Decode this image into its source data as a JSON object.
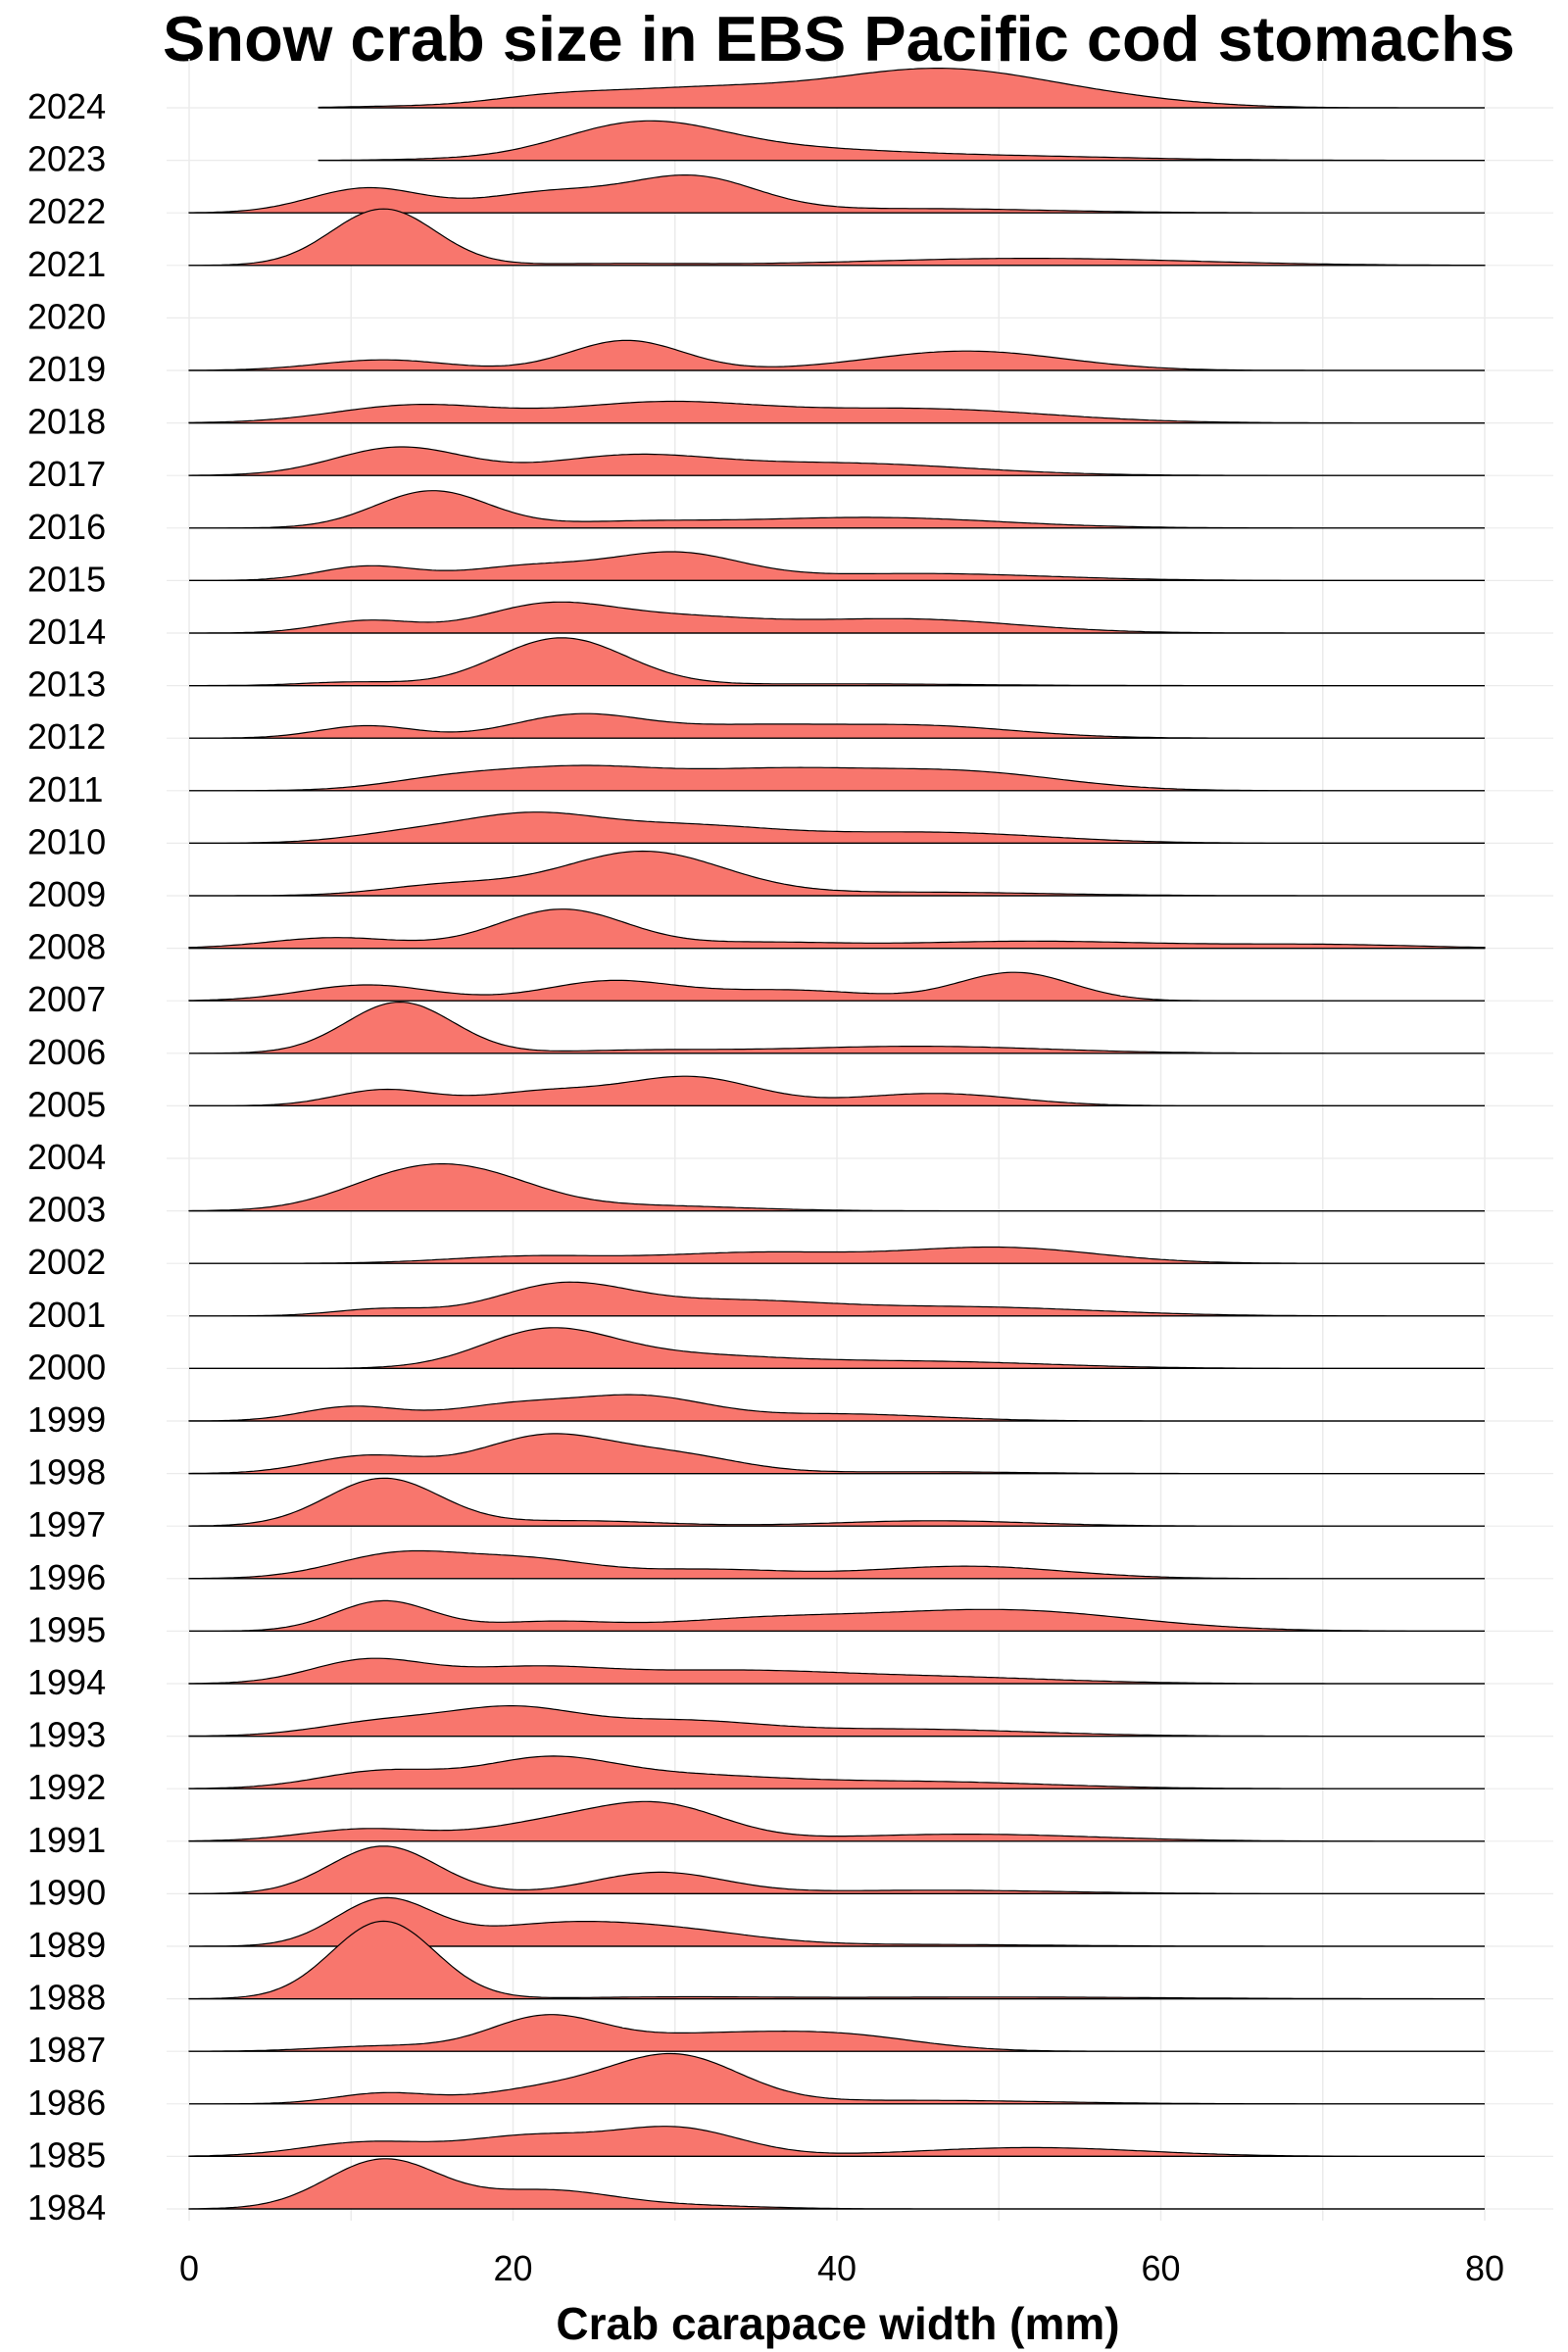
{
  "chart_data": {
    "type": "ridgeline",
    "title": "Snow crab size in EBS Pacific cod stomachs",
    "xlabel": "Crab carapace width (mm)",
    "ylabel": "",
    "xlim": [
      0,
      80
    ],
    "x_ticks": [
      "0",
      "20",
      "40",
      "60",
      "80"
    ],
    "fill_color": "#F8766D",
    "line_color": "#000000",
    "grid": true,
    "legend": "none",
    "years": [
      "2024",
      "2023",
      "2022",
      "2021",
      "2020",
      "2019",
      "2018",
      "2017",
      "2016",
      "2015",
      "2014",
      "2013",
      "2012",
      "2011",
      "2010",
      "2009",
      "2008",
      "2007",
      "2006",
      "2005",
      "2004",
      "2003",
      "2002",
      "2001",
      "2000",
      "1999",
      "1998",
      "1997",
      "1996",
      "1995",
      "1994",
      "1993",
      "1992",
      "1991",
      "1990",
      "1989",
      "1988",
      "1987",
      "1986",
      "1985",
      "1984"
    ],
    "series": [
      {
        "year": "2024",
        "range": [
          8,
          80
        ],
        "peaks": [
          [
            12,
            0.03,
            3
          ],
          [
            22,
            0.2,
            4
          ],
          [
            32,
            0.55,
            7
          ],
          [
            46,
            0.95,
            6
          ],
          [
            55,
            0.3,
            6
          ]
        ]
      },
      {
        "year": "2023",
        "range": [
          8,
          80
        ],
        "peaks": [
          [
            15,
            0.02,
            3
          ],
          [
            28,
            1.05,
            5
          ],
          [
            38,
            0.25,
            6
          ],
          [
            50,
            0.12,
            8
          ]
        ]
      },
      {
        "year": "2022",
        "range": [
          0,
          80
        ],
        "peaks": [
          [
            11,
            0.7,
            3.5
          ],
          [
            22,
            0.55,
            4
          ],
          [
            31,
            1.0,
            4
          ],
          [
            45,
            0.12,
            8
          ]
        ]
      },
      {
        "year": "2021",
        "range": [
          0,
          80
        ],
        "peaks": [
          [
            12,
            1.6,
            3.2
          ],
          [
            26,
            0.05,
            5
          ],
          [
            52,
            0.2,
            10
          ]
        ]
      },
      {
        "year": "2020",
        "range": [
          0,
          0
        ],
        "peaks": []
      },
      {
        "year": "2019",
        "range": [
          0,
          80
        ],
        "peaks": [
          [
            12,
            0.3,
            4
          ],
          [
            27,
            0.85,
            3.5
          ],
          [
            48,
            0.55,
            6
          ]
        ]
      },
      {
        "year": "2018",
        "range": [
          0,
          80
        ],
        "peaks": [
          [
            14,
            0.5,
            5
          ],
          [
            29,
            0.55,
            6
          ],
          [
            45,
            0.4,
            8
          ]
        ]
      },
      {
        "year": "2017",
        "range": [
          0,
          80
        ],
        "peaks": [
          [
            13,
            0.8,
            4
          ],
          [
            27,
            0.5,
            5
          ],
          [
            40,
            0.35,
            8
          ]
        ]
      },
      {
        "year": "2016",
        "range": [
          0,
          80
        ],
        "peaks": [
          [
            15,
            1.05,
            3.5
          ],
          [
            27,
            0.15,
            5
          ],
          [
            42,
            0.3,
            8
          ]
        ]
      },
      {
        "year": "2015",
        "range": [
          0,
          80
        ],
        "peaks": [
          [
            11,
            0.4,
            3
          ],
          [
            21,
            0.4,
            4
          ],
          [
            30,
            0.75,
            4
          ],
          [
            45,
            0.2,
            8
          ]
        ]
      },
      {
        "year": "2014",
        "range": [
          0,
          80
        ],
        "peaks": [
          [
            11,
            0.35,
            3
          ],
          [
            22,
            0.75,
            4
          ],
          [
            30,
            0.4,
            5
          ],
          [
            44,
            0.4,
            7
          ]
        ]
      },
      {
        "year": "2013",
        "range": [
          0,
          80
        ],
        "peaks": [
          [
            10,
            0.1,
            3
          ],
          [
            23,
            1.35,
            4
          ],
          [
            40,
            0.05,
            8
          ]
        ]
      },
      {
        "year": "2012",
        "range": [
          0,
          80
        ],
        "peaks": [
          [
            11,
            0.35,
            3
          ],
          [
            24,
            0.65,
            4
          ],
          [
            34,
            0.3,
            5
          ],
          [
            45,
            0.35,
            6
          ]
        ]
      },
      {
        "year": "2011",
        "range": [
          0,
          80
        ],
        "peaks": [
          [
            16,
            0.3,
            4
          ],
          [
            24,
            0.6,
            5
          ],
          [
            36,
            0.55,
            6
          ],
          [
            48,
            0.5,
            6
          ]
        ]
      },
      {
        "year": "2010",
        "range": [
          0,
          80
        ],
        "peaks": [
          [
            14,
            0.3,
            4
          ],
          [
            21,
            0.65,
            4
          ],
          [
            30,
            0.5,
            6
          ],
          [
            46,
            0.3,
            7
          ]
        ]
      },
      {
        "year": "2009",
        "range": [
          0,
          80
        ],
        "peaks": [
          [
            16,
            0.3,
            4
          ],
          [
            28,
            1.25,
            5
          ],
          [
            45,
            0.1,
            8
          ]
        ]
      },
      {
        "year": "2008",
        "range": [
          0,
          80
        ],
        "peaks": [
          [
            9,
            0.3,
            4
          ],
          [
            23,
            1.1,
            4
          ],
          [
            35,
            0.15,
            5
          ],
          [
            52,
            0.2,
            8
          ],
          [
            70,
            0.1,
            6
          ]
        ]
      },
      {
        "year": "2007",
        "range": [
          0,
          80
        ],
        "peaks": [
          [
            11,
            0.45,
            4
          ],
          [
            26,
            0.55,
            4
          ],
          [
            37,
            0.3,
            5
          ],
          [
            51,
            0.8,
            3.5
          ]
        ]
      },
      {
        "year": "2006",
        "range": [
          0,
          80
        ],
        "peaks": [
          [
            13,
            1.45,
            3.3
          ],
          [
            28,
            0.08,
            5
          ],
          [
            45,
            0.2,
            8
          ]
        ]
      },
      {
        "year": "2005",
        "range": [
          0,
          80
        ],
        "peaks": [
          [
            12,
            0.45,
            3
          ],
          [
            22,
            0.4,
            4
          ],
          [
            31,
            0.8,
            4
          ],
          [
            46,
            0.35,
            5
          ]
        ]
      },
      {
        "year": "2004",
        "range": [
          0,
          0
        ],
        "peaks": []
      },
      {
        "year": "2003",
        "range": [
          0,
          80
        ],
        "peaks": [
          [
            13,
            0.8,
            4
          ],
          [
            18,
            0.8,
            4
          ],
          [
            28,
            0.15,
            6
          ]
        ]
      },
      {
        "year": "2002",
        "range": [
          0,
          80
        ],
        "peaks": [
          [
            21,
            0.2,
            5
          ],
          [
            35,
            0.3,
            6
          ],
          [
            50,
            0.45,
            6
          ]
        ]
      },
      {
        "year": "2001",
        "range": [
          0,
          80
        ],
        "peaks": [
          [
            12,
            0.2,
            3
          ],
          [
            23,
            0.85,
            4
          ],
          [
            33,
            0.4,
            6
          ],
          [
            48,
            0.25,
            8
          ]
        ]
      },
      {
        "year": "2000",
        "range": [
          0,
          80
        ],
        "peaks": [
          [
            22,
            1.0,
            4
          ],
          [
            30,
            0.35,
            6
          ],
          [
            45,
            0.2,
            8
          ]
        ]
      },
      {
        "year": "1999",
        "range": [
          0,
          80
        ],
        "peaks": [
          [
            10,
            0.4,
            3
          ],
          [
            20,
            0.45,
            4
          ],
          [
            28,
            0.65,
            4
          ],
          [
            40,
            0.2,
            6
          ]
        ]
      },
      {
        "year": "1998",
        "range": [
          0,
          80
        ],
        "peaks": [
          [
            11,
            0.5,
            3.5
          ],
          [
            22,
            1.05,
            4
          ],
          [
            30,
            0.5,
            4
          ],
          [
            45,
            0.05,
            6
          ]
        ]
      },
      {
        "year": "1997",
        "range": [
          0,
          80
        ],
        "peaks": [
          [
            12,
            1.35,
            3.5
          ],
          [
            24,
            0.15,
            5
          ],
          [
            46,
            0.15,
            6
          ]
        ]
      },
      {
        "year": "1996",
        "range": [
          0,
          80
        ],
        "peaks": [
          [
            13,
            0.7,
            4
          ],
          [
            21,
            0.5,
            4
          ],
          [
            32,
            0.25,
            5
          ],
          [
            48,
            0.35,
            6
          ]
        ]
      },
      {
        "year": "1995",
        "range": [
          0,
          80
        ],
        "peaks": [
          [
            12,
            0.85,
            3
          ],
          [
            22,
            0.25,
            4
          ],
          [
            35,
            0.3,
            6
          ],
          [
            50,
            0.6,
            8
          ]
        ]
      },
      {
        "year": "1994",
        "range": [
          0,
          80
        ],
        "peaks": [
          [
            11,
            0.65,
            3.5
          ],
          [
            21,
            0.45,
            5
          ],
          [
            33,
            0.3,
            6
          ],
          [
            45,
            0.2,
            8
          ]
        ]
      },
      {
        "year": "1993",
        "range": [
          0,
          80
        ],
        "peaks": [
          [
            12,
            0.4,
            4
          ],
          [
            20,
            0.75,
            4
          ],
          [
            30,
            0.4,
            5
          ],
          [
            44,
            0.2,
            8
          ]
        ]
      },
      {
        "year": "1992",
        "range": [
          0,
          80
        ],
        "peaks": [
          [
            12,
            0.5,
            4
          ],
          [
            22,
            0.75,
            4
          ],
          [
            30,
            0.35,
            6
          ],
          [
            45,
            0.2,
            8
          ]
        ]
      },
      {
        "year": "1991",
        "range": [
          0,
          80
        ],
        "peaks": [
          [
            11,
            0.35,
            4
          ],
          [
            22,
            0.45,
            4
          ],
          [
            29,
            1.0,
            4
          ],
          [
            48,
            0.2,
            8
          ]
        ]
      },
      {
        "year": "1990",
        "range": [
          0,
          80
        ],
        "peaks": [
          [
            12,
            1.35,
            3.3
          ],
          [
            29,
            0.6,
            4
          ],
          [
            46,
            0.1,
            8
          ]
        ]
      },
      {
        "year": "1989",
        "range": [
          0,
          80
        ],
        "peaks": [
          [
            12,
            1.3,
            3
          ],
          [
            22,
            0.55,
            5
          ],
          [
            30,
            0.4,
            5
          ],
          [
            45,
            0.05,
            8
          ]
        ]
      },
      {
        "year": "1988",
        "range": [
          0,
          80
        ],
        "peaks": [
          [
            12,
            2.2,
            3.2
          ],
          [
            30,
            0.05,
            6
          ],
          [
            50,
            0.05,
            10
          ]
        ]
      },
      {
        "year": "1987",
        "range": [
          0,
          80
        ],
        "peaks": [
          [
            12,
            0.15,
            4
          ],
          [
            22,
            0.95,
            3.5
          ],
          [
            31,
            0.4,
            5
          ],
          [
            40,
            0.45,
            5
          ]
        ]
      },
      {
        "year": "1986",
        "range": [
          0,
          80
        ],
        "peaks": [
          [
            12,
            0.3,
            3
          ],
          [
            22,
            0.4,
            4
          ],
          [
            30,
            1.35,
            4
          ],
          [
            45,
            0.1,
            8
          ]
        ]
      },
      {
        "year": "1985",
        "range": [
          0,
          80
        ],
        "peaks": [
          [
            11,
            0.4,
            4
          ],
          [
            21,
            0.55,
            4
          ],
          [
            30,
            0.8,
            4
          ],
          [
            52,
            0.25,
            7
          ]
        ]
      },
      {
        "year": "1984",
        "range": [
          0,
          80
        ],
        "peaks": [
          [
            12,
            1.4,
            3.5
          ],
          [
            22,
            0.5,
            4
          ],
          [
            30,
            0.1,
            5
          ]
        ]
      }
    ]
  }
}
